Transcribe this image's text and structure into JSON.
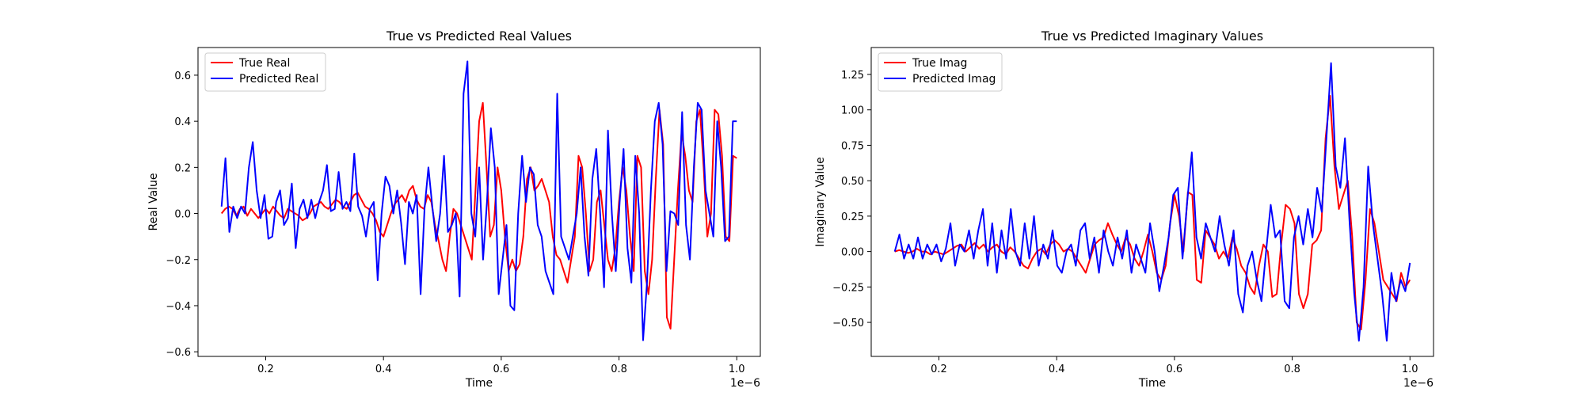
{
  "chart_data": [
    {
      "type": "line",
      "title": "True vs Predicted Real Values",
      "xlabel": "Time",
      "ylabel": "Real Value",
      "x_offset_label": "1e−6",
      "xlim": [
        0.085,
        1.04
      ],
      "ylim": [
        -0.62,
        0.72
      ],
      "x_ticks": [
        0.2,
        0.4,
        0.6,
        0.8,
        1.0
      ],
      "x_tick_labels": [
        "0.2",
        "0.4",
        "0.6",
        "0.8",
        "1.0"
      ],
      "y_ticks": [
        -0.6,
        -0.4,
        -0.2,
        0.0,
        0.2,
        0.4,
        0.6
      ],
      "y_tick_labels": [
        "−0.6",
        "−0.4",
        "−0.2",
        "0.0",
        "0.2",
        "0.4",
        "0.6"
      ],
      "grid": false,
      "legend_position": "top-left",
      "x_start": 0.125,
      "x_end": 1.0,
      "series": [
        {
          "name": "True Real",
          "color": "#ff0000",
          "values": [
            0.0,
            0.02,
            0.03,
            0.02,
            -0.01,
            0.02,
            0.03,
            -0.01,
            0.02,
            0.0,
            -0.02,
            0.0,
            0.02,
            0.0,
            0.03,
            0.01,
            -0.01,
            -0.02,
            0.02,
            0.01,
            0.0,
            -0.01,
            -0.03,
            -0.02,
            0.0,
            0.03,
            0.04,
            0.05,
            0.03,
            0.02,
            0.04,
            0.06,
            0.05,
            0.03,
            0.02,
            0.05,
            0.08,
            0.09,
            0.06,
            0.03,
            0.02,
            0.0,
            -0.03,
            -0.08,
            -0.1,
            -0.05,
            0.0,
            0.04,
            0.06,
            0.08,
            0.05,
            0.1,
            0.12,
            0.06,
            0.03,
            0.02,
            0.08,
            0.05,
            -0.05,
            -0.12,
            -0.2,
            -0.25,
            -0.1,
            0.02,
            0.0,
            -0.05,
            -0.1,
            -0.15,
            -0.2,
            0.1,
            0.4,
            0.48,
            0.2,
            -0.1,
            -0.05,
            0.2,
            0.1,
            -0.1,
            -0.25,
            -0.2,
            -0.25,
            -0.22,
            -0.1,
            0.15,
            0.2,
            0.1,
            0.12,
            0.15,
            0.1,
            0.05,
            -0.1,
            -0.18,
            -0.2,
            -0.25,
            -0.3,
            -0.2,
            -0.1,
            0.25,
            0.2,
            0.0,
            -0.25,
            -0.2,
            0.05,
            0.1,
            -0.05,
            -0.2,
            -0.25,
            -0.15,
            0.05,
            0.2,
            0.1,
            -0.1,
            -0.25,
            0.25,
            0.2,
            -0.25,
            -0.35,
            -0.2,
            0.15,
            0.45,
            0.3,
            -0.45,
            -0.5,
            -0.2,
            0.1,
            0.35,
            0.25,
            0.1,
            0.05,
            0.4,
            0.45,
            0.2,
            -0.1,
            0.0,
            0.45,
            0.43,
            0.25,
            -0.1,
            -0.12,
            0.25,
            0.24
          ]
        },
        {
          "name": "Predicted Real",
          "color": "#0000ff",
          "values": [
            0.03,
            0.24,
            -0.08,
            0.03,
            -0.02,
            0.03,
            0.0,
            0.2,
            0.31,
            0.1,
            -0.02,
            0.08,
            -0.11,
            -0.1,
            0.05,
            0.1,
            -0.05,
            -0.02,
            0.13,
            -0.15,
            0.02,
            0.06,
            -0.02,
            0.06,
            -0.02,
            0.05,
            0.1,
            0.21,
            0.01,
            0.02,
            0.18,
            0.02,
            0.05,
            0.01,
            0.26,
            0.03,
            -0.01,
            -0.1,
            0.02,
            0.05,
            -0.29,
            0.0,
            0.16,
            0.12,
            0.0,
            0.1,
            -0.04,
            -0.22,
            0.05,
            0.0,
            0.08,
            -0.35,
            0.02,
            0.2,
            0.03,
            -0.12,
            0.0,
            0.25,
            -0.08,
            -0.05,
            0.0,
            -0.36,
            0.52,
            0.66,
            0.0,
            -0.1,
            0.2,
            -0.2,
            0.05,
            0.37,
            0.2,
            -0.35,
            -0.2,
            -0.05,
            -0.4,
            -0.42,
            0.0,
            0.25,
            0.05,
            0.2,
            0.17,
            -0.05,
            -0.1,
            -0.25,
            -0.3,
            -0.35,
            0.52,
            -0.1,
            -0.15,
            -0.2,
            -0.1,
            0.0,
            0.2,
            -0.1,
            -0.27,
            0.15,
            0.28,
            0.0,
            -0.32,
            0.36,
            0.0,
            -0.25,
            0.05,
            0.28,
            -0.15,
            -0.3,
            0.25,
            0.0,
            -0.55,
            -0.3,
            0.1,
            0.4,
            0.48,
            0.3,
            -0.25,
            0.01,
            0.0,
            -0.05,
            0.44,
            -0.05,
            -0.2,
            0.2,
            0.48,
            0.45,
            0.1,
            0.0,
            -0.1,
            0.4,
            0.2,
            -0.12,
            -0.1,
            0.4,
            0.4
          ]
        }
      ]
    },
    {
      "type": "line",
      "title": "True vs Predicted Imaginary Values",
      "xlabel": "Time",
      "ylabel": "Imaginary Value",
      "x_offset_label": "1e−6",
      "xlim": [
        0.085,
        1.04
      ],
      "ylim": [
        -0.74,
        1.44
      ],
      "x_ticks": [
        0.2,
        0.4,
        0.6,
        0.8,
        1.0
      ],
      "x_tick_labels": [
        "0.2",
        "0.4",
        "0.6",
        "0.8",
        "1.0"
      ],
      "y_ticks": [
        -0.5,
        -0.25,
        0.0,
        0.25,
        0.5,
        0.75,
        1.0,
        1.25
      ],
      "y_tick_labels": [
        "−0.50",
        "−0.25",
        "0.00",
        "0.25",
        "0.50",
        "0.75",
        "1.00",
        "1.25"
      ],
      "grid": false,
      "legend_position": "top-left",
      "x_start": 0.125,
      "x_end": 1.0,
      "series": [
        {
          "name": "True Imag",
          "color": "#ff0000",
          "values": [
            0.0,
            0.01,
            0.0,
            -0.01,
            0.0,
            0.02,
            0.0,
            0.0,
            -0.02,
            0.0,
            -0.01,
            -0.02,
            0.0,
            0.02,
            0.04,
            0.05,
            0.0,
            0.03,
            0.06,
            0.02,
            0.05,
            0.0,
            0.03,
            0.05,
            0.0,
            -0.02,
            0.03,
            0.0,
            -0.05,
            -0.1,
            -0.12,
            -0.05,
            0.0,
            0.02,
            -0.02,
            0.05,
            0.08,
            0.05,
            0.0,
            0.02,
            0.0,
            -0.05,
            -0.1,
            -0.15,
            -0.05,
            0.05,
            0.08,
            0.1,
            0.2,
            0.12,
            0.05,
            0.0,
            0.1,
            0.05,
            -0.05,
            -0.1,
            0.0,
            0.12,
            0.0,
            -0.15,
            -0.2,
            -0.1,
            0.2,
            0.4,
            0.25,
            0.0,
            0.42,
            0.4,
            -0.2,
            -0.22,
            0.15,
            0.1,
            0.05,
            -0.05,
            0.0,
            -0.05,
            0.1,
            0.02,
            -0.1,
            -0.15,
            -0.25,
            -0.3,
            -0.1,
            0.05,
            0.0,
            -0.32,
            -0.3,
            0.05,
            0.33,
            0.3,
            0.2,
            -0.3,
            -0.4,
            -0.3,
            0.05,
            0.08,
            0.15,
            0.8,
            1.1,
            0.6,
            0.3,
            0.4,
            0.5,
            0.1,
            -0.5,
            -0.55,
            -0.2,
            0.3,
            0.2,
            0.0,
            -0.2,
            -0.25,
            -0.3,
            -0.35,
            -0.15,
            -0.25,
            -0.2
          ]
        },
        {
          "name": "Predicted Imag",
          "color": "#0000ff",
          "values": [
            0.0,
            0.12,
            -0.05,
            0.05,
            -0.05,
            0.1,
            -0.05,
            0.05,
            -0.02,
            0.05,
            -0.07,
            0.02,
            0.2,
            -0.1,
            0.05,
            0.0,
            0.15,
            -0.05,
            0.15,
            0.3,
            -0.1,
            0.2,
            -0.15,
            0.15,
            -0.05,
            0.3,
            0.0,
            -0.1,
            0.2,
            -0.05,
            0.25,
            -0.1,
            0.05,
            -0.05,
            0.15,
            -0.1,
            -0.15,
            0.0,
            0.05,
            -0.1,
            0.15,
            0.2,
            -0.05,
            0.1,
            -0.15,
            0.15,
            0.0,
            -0.1,
            0.1,
            -0.05,
            0.15,
            -0.15,
            0.05,
            -0.05,
            -0.15,
            0.2,
            0.0,
            -0.28,
            -0.1,
            0.1,
            0.4,
            0.45,
            -0.05,
            0.35,
            0.7,
            0.1,
            -0.05,
            0.2,
            0.1,
            0.0,
            0.25,
            0.05,
            -0.1,
            0.15,
            -0.3,
            -0.43,
            -0.1,
            0.0,
            -0.2,
            -0.35,
            0.0,
            0.33,
            0.1,
            0.15,
            -0.35,
            -0.4,
            0.1,
            0.25,
            0.05,
            0.3,
            0.1,
            0.45,
            0.28,
            0.8,
            1.33,
            0.6,
            0.45,
            0.8,
            0.2,
            -0.3,
            -0.63,
            -0.25,
            0.6,
            0.2,
            -0.05,
            -0.3,
            -0.63,
            -0.15,
            -0.35,
            -0.2,
            -0.28,
            -0.08
          ]
        }
      ]
    }
  ]
}
